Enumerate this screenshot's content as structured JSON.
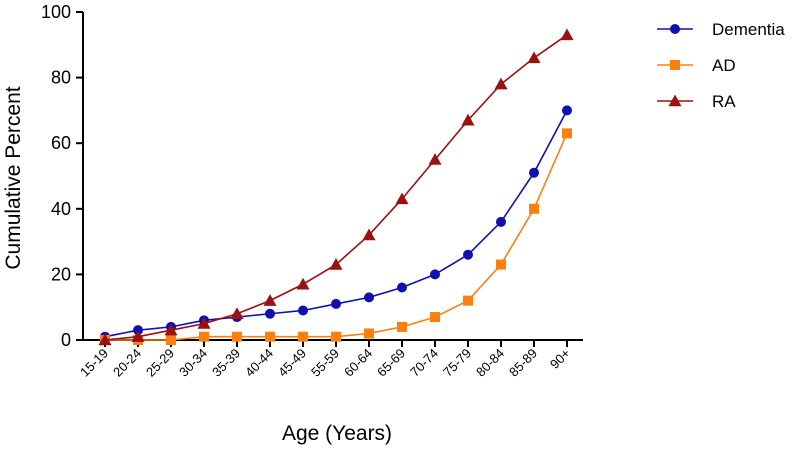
{
  "chart_data": {
    "type": "line",
    "title": "",
    "xlabel": "Age (Years)",
    "ylabel": "Cumulative Percent",
    "ylim": [
      0,
      100
    ],
    "yticks": [
      0,
      20,
      40,
      60,
      80,
      100
    ],
    "grid": false,
    "legend_position": "top-right",
    "categories": [
      "15-19",
      "20-24",
      "25-29",
      "30-34",
      "35-39",
      "40-44",
      "45-49",
      "55-59",
      "60-64",
      "65-69",
      "70-74",
      "75-79",
      "80-84",
      "85-89",
      "90+"
    ],
    "series": [
      {
        "name": "Dementia",
        "color": "#1010b0",
        "marker": "circle",
        "values": [
          1,
          3,
          4,
          6,
          7,
          8,
          9,
          11,
          13,
          16,
          20,
          26,
          36,
          51,
          70
        ]
      },
      {
        "name": "AD",
        "color": "#ff7f0e",
        "marker": "square",
        "values": [
          0,
          0,
          0,
          1,
          1,
          1,
          1,
          1,
          2,
          4,
          7,
          12,
          23,
          40,
          63
        ]
      },
      {
        "name": "RA",
        "color": "#9b1010",
        "marker": "triangle",
        "values": [
          0,
          1,
          3,
          5,
          8,
          12,
          17,
          23,
          32,
          43,
          55,
          67,
          78,
          86,
          93
        ]
      }
    ]
  }
}
